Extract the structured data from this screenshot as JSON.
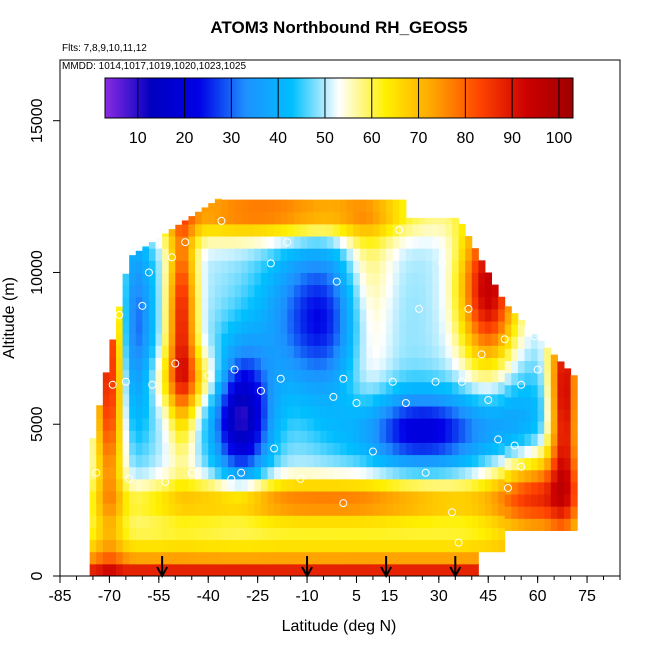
{
  "chart_data": {
    "type": "heatmap",
    "title": "ATOM3 Northbound RH_GEOS5",
    "flights_label": "Flts: 7,8,9,10,11,12",
    "dates_label": "MMDD: 1014,1017,1019,1020,1023,1025",
    "xlabel": "Latitude (deg N)",
    "ylabel": "Altitude (m)",
    "xlim": [
      -85,
      85
    ],
    "ylim": [
      0,
      17000
    ],
    "x_ticks": [
      "-85",
      "-70",
      "-55",
      "-40",
      "-25",
      "-10",
      "5",
      "15",
      "30",
      "45",
      "60",
      "75"
    ],
    "y_ticks": [
      "0",
      "5000",
      "10000",
      "15000"
    ],
    "colorbar": {
      "min": 3,
      "max": 103,
      "ticks": [
        "10",
        "20",
        "30",
        "40",
        "50",
        "60",
        "70",
        "80",
        "90",
        "100"
      ],
      "stops": [
        "#8a2be2",
        "#0000c0",
        "#0000e6",
        "#1e90ff",
        "#00bfff",
        "#ffffff",
        "#fff000",
        "#ffa500",
        "#ff4500",
        "#cc0000",
        "#a00000"
      ]
    },
    "profile_arrows": [
      -54,
      -10,
      14,
      35
    ],
    "profile_points": [
      [
        -76,
        5400
      ],
      [
        -74,
        3400
      ],
      [
        -72,
        7500
      ],
      [
        -71,
        9500
      ],
      [
        -69,
        6300
      ],
      [
        -67,
        8600
      ],
      [
        -66,
        10500
      ],
      [
        -65,
        6400
      ],
      [
        -64,
        3200
      ],
      [
        -60,
        8900
      ],
      [
        -58,
        10000
      ],
      [
        -57,
        6300
      ],
      [
        -53,
        3100
      ],
      [
        -51,
        10500
      ],
      [
        -50,
        7000
      ],
      [
        -47,
        11000
      ],
      [
        -45,
        3400
      ],
      [
        -40,
        6600
      ],
      [
        -36,
        11700
      ],
      [
        -33,
        3200
      ],
      [
        -32,
        6800
      ],
      [
        -30,
        3400
      ],
      [
        -24,
        6100
      ],
      [
        -21,
        10300
      ],
      [
        -20,
        4200
      ],
      [
        -18,
        6500
      ],
      [
        -16,
        11000
      ],
      [
        -12,
        3200
      ],
      [
        -2,
        5900
      ],
      [
        -1,
        9700
      ],
      [
        1,
        2400
      ],
      [
        1,
        6500
      ],
      [
        4,
        3400
      ],
      [
        5,
        5700
      ],
      [
        10,
        4100
      ],
      [
        16,
        6400
      ],
      [
        18,
        11400
      ],
      [
        20,
        5700
      ],
      [
        24,
        8800
      ],
      [
        26,
        3400
      ],
      [
        29,
        6400
      ],
      [
        31,
        10300
      ],
      [
        34,
        2100
      ],
      [
        36,
        1100
      ],
      [
        37,
        6400
      ],
      [
        39,
        8800
      ],
      [
        43,
        7300
      ],
      [
        45,
        5800
      ],
      [
        48,
        4500
      ],
      [
        50,
        7800
      ],
      [
        51,
        2900
      ],
      [
        53,
        4300
      ],
      [
        55,
        3600
      ],
      [
        55,
        6300
      ],
      [
        58,
        1100
      ],
      [
        59,
        7900
      ],
      [
        60,
        6800
      ]
    ]
  }
}
